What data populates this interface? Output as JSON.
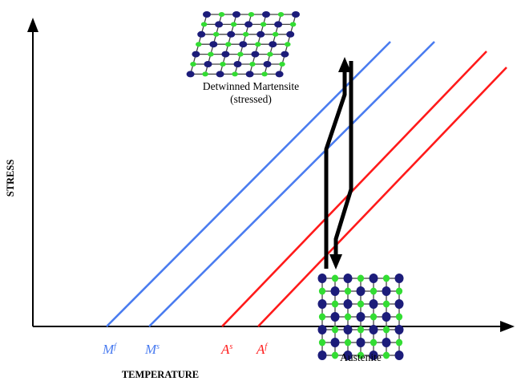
{
  "axes": {
    "x_label": "TEMPERATURE",
    "y_label": "STRESS"
  },
  "lines": [
    {
      "letter": "M",
      "sub": "f",
      "color": "#4a7cf0"
    },
    {
      "letter": "M",
      "sub": "s",
      "color": "#4a7cf0"
    },
    {
      "letter": "A",
      "sub": "s",
      "color": "#ff1a1a"
    },
    {
      "letter": "A",
      "sub": "f",
      "color": "#ff1a1a"
    }
  ],
  "labels": {
    "martensite_line1": "Detwinned Martensite",
    "martensite_line2": "(stressed)",
    "austenite": "Austenite"
  },
  "colors": {
    "atom_dark": "#1c1c7a",
    "atom_light": "#33dd33",
    "bond": "#444444",
    "arrow": "#000000"
  },
  "icons": {
    "martensite_lattice": "skewed-atom-lattice",
    "austenite_lattice": "square-atom-lattice",
    "transformation_arrow": "double-arrow"
  }
}
